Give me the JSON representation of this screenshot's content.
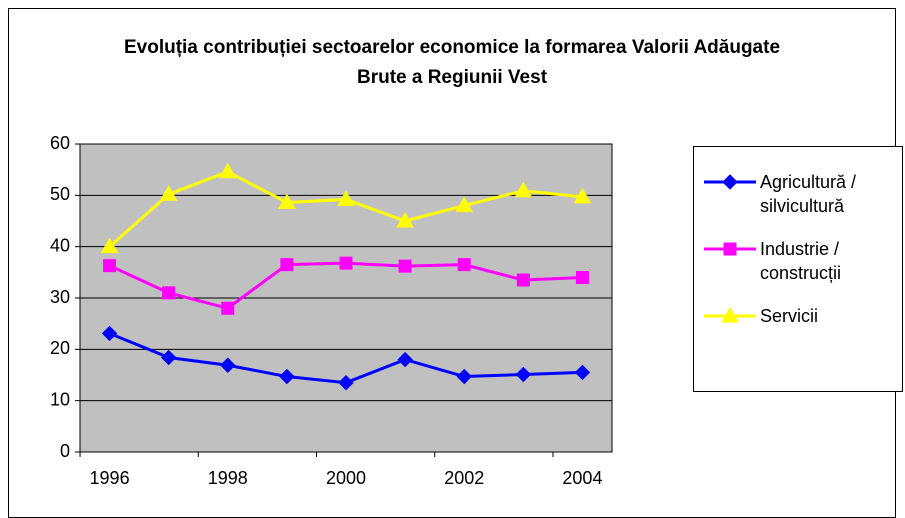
{
  "chart_data": {
    "type": "line",
    "title": "Evoluția contribuției sectoarelor economice la formarea Valorii Adăugate Brute a Regiunii Vest",
    "x": [
      1996,
      1997,
      1998,
      1999,
      2000,
      2001,
      2002,
      2003,
      2004
    ],
    "xlim": [
      1995.5,
      2004.5
    ],
    "xticks": [
      1996,
      1998,
      2000,
      2002,
      2004
    ],
    "ylim": [
      0,
      60
    ],
    "yticks": [
      0,
      10,
      20,
      30,
      40,
      50,
      60
    ],
    "grid": true,
    "legend": "right",
    "series": [
      {
        "name": "Agricultură / silvicultură",
        "color": "#0000ff",
        "marker": "diamond",
        "values": [
          23.1,
          18.4,
          16.9,
          14.7,
          13.5,
          18.0,
          14.7,
          15.1,
          15.5
        ]
      },
      {
        "name": "Industrie / construcții",
        "color": "#ff00ff",
        "marker": "square",
        "values": [
          36.3,
          31.0,
          28.0,
          36.5,
          36.8,
          36.2,
          36.5,
          33.5,
          34.0
        ]
      },
      {
        "name": "Servicii",
        "color": "#ffff00",
        "marker": "triangle",
        "values": [
          40.0,
          50.2,
          54.6,
          48.6,
          49.2,
          45.0,
          48.0,
          50.9,
          49.7
        ]
      }
    ]
  }
}
